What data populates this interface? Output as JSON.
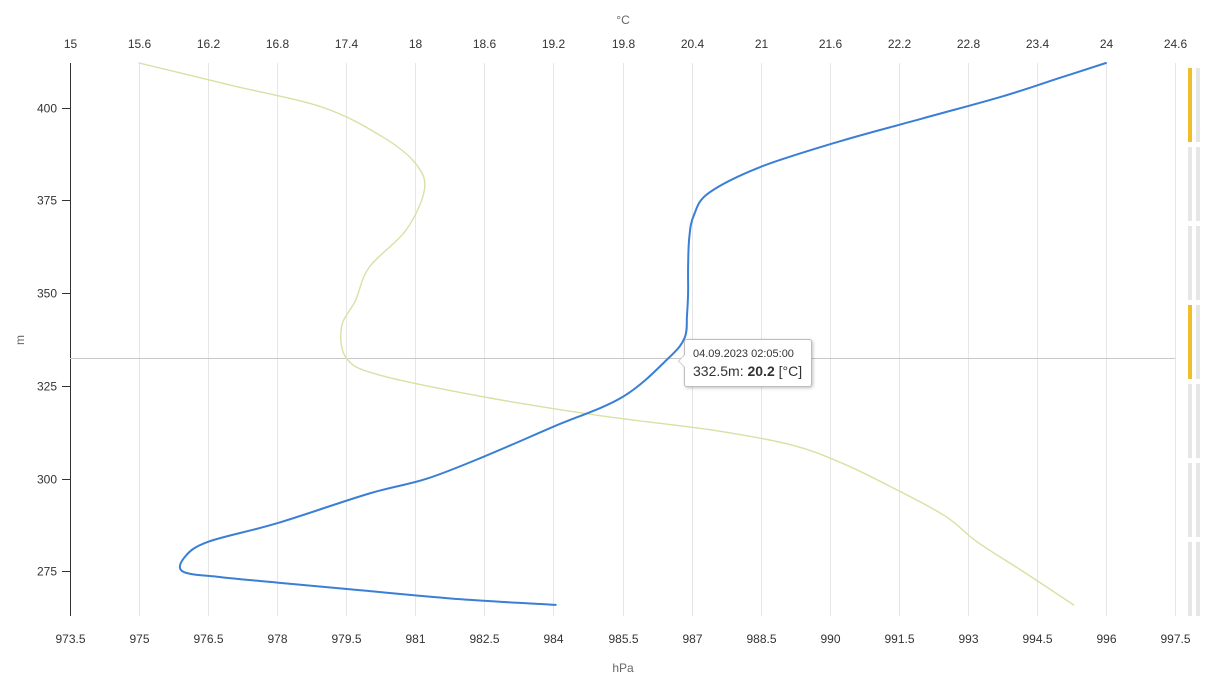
{
  "chart_data": {
    "type": "line",
    "title": "",
    "xlabel_top": "°C",
    "xlabel_bottom": "hPa",
    "ylabel": "m",
    "x_top_ticks": [
      "15",
      "15.6",
      "16.2",
      "16.8",
      "17.4",
      "18",
      "18.6",
      "19.2",
      "19.8",
      "20.4",
      "21",
      "21.6",
      "22.2",
      "22.8",
      "23.4",
      "24",
      "24.6"
    ],
    "x_top_range": [
      15,
      24.6
    ],
    "x_bottom_ticks": [
      "973.5",
      "975",
      "976.5",
      "978",
      "979.5",
      "981",
      "982.5",
      "984",
      "985.5",
      "987",
      "988.5",
      "990",
      "991.5",
      "993",
      "994.5",
      "996",
      "997.5"
    ],
    "x_bottom_range": [
      973.5,
      997.5
    ],
    "y_ticks": [
      "275",
      "300",
      "325",
      "350",
      "375",
      "400"
    ],
    "y_range": [
      263,
      412
    ],
    "grid": true,
    "series": [
      {
        "axis": "top",
        "unit": "°C",
        "color": "#3a7fd5",
        "x": [
          19.22,
          18.4,
          17.5,
          16.8,
          16.3,
          15.98,
          16.0,
          16.2,
          16.8,
          17.6,
          18.1,
          18.6,
          19.2,
          19.8,
          20.2,
          20.34,
          20.36,
          20.37,
          20.37,
          20.38,
          20.42,
          20.55,
          21.0,
          21.7,
          22.4,
          23.1,
          23.6,
          24.0
        ],
        "y": [
          266,
          267.5,
          270,
          272,
          273.5,
          275,
          279,
          283,
          288,
          296,
          300,
          306,
          314,
          322,
          332.5,
          338,
          344,
          350,
          357,
          365,
          371,
          377,
          384,
          391,
          397,
          403,
          408,
          412
        ]
      },
      {
        "axis": "bottom",
        "unit": "hPa",
        "color": "#d8e0a4",
        "x": [
          975.0,
          977.0,
          979.0,
          980.3,
          981.0,
          981.2,
          980.8,
          980.0,
          979.7,
          979.4,
          979.5,
          980.2,
          982.5,
          985.0,
          987.5,
          989.2,
          990.3,
          991.3,
          992.5,
          993.2,
          994.2,
          995.3
        ],
        "y": [
          412,
          406,
          400,
          392,
          385,
          378,
          367,
          357,
          348,
          341,
          332.5,
          328,
          322,
          317,
          313,
          309,
          304,
          298,
          290,
          283,
          275,
          266
        ]
      }
    ],
    "crosshair_y": 332.5,
    "tooltip": {
      "timestamp": "04.09.2023 02:05:00",
      "prefix": "332.5m:",
      "value": "20.2",
      "unit": "[°C]"
    }
  },
  "range_selector": {
    "segments": [
      {
        "active": true
      },
      {
        "active": false
      },
      {
        "active": false
      },
      {
        "active": true
      },
      {
        "active": false
      },
      {
        "active": false
      },
      {
        "active": false
      }
    ],
    "active_color": "#f0be2a",
    "inactive_color": "#e6e6e6"
  }
}
